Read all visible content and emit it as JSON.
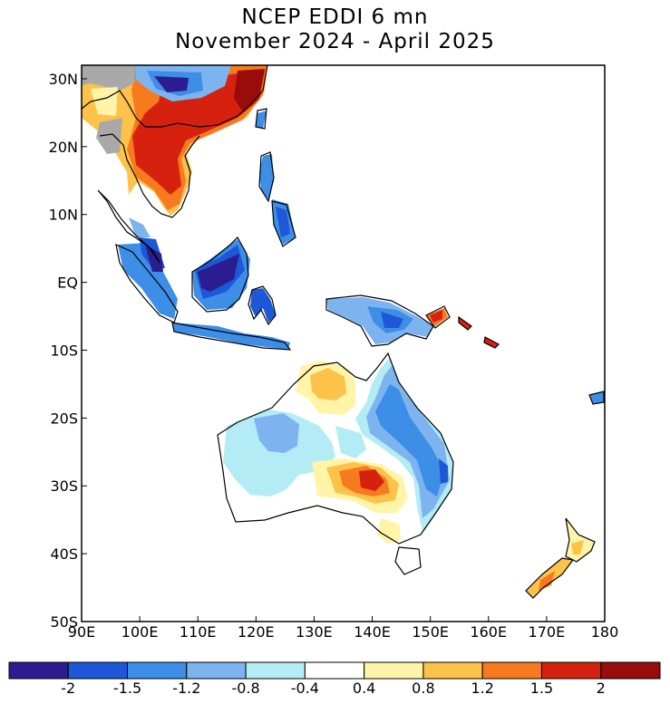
{
  "title": {
    "line1": "NCEP EDDI 6 mn",
    "line2": "November 2024 - April 2025"
  },
  "map": {
    "lon_ticks": [
      "90E",
      "100E",
      "110E",
      "120E",
      "130E",
      "140E",
      "150E",
      "160E",
      "170E",
      "180"
    ],
    "lat_ticks": [
      "30N",
      "20N",
      "10N",
      "EQ",
      "10S",
      "20S",
      "30S",
      "40S",
      "50S"
    ],
    "lon_range_deg": [
      90,
      180
    ],
    "lat_range_deg": [
      -50,
      32
    ]
  },
  "legend": {
    "labels": [
      "-2",
      "-1.5",
      "-1.2",
      "-0.8",
      "-0.4",
      "0.4",
      "0.8",
      "1.2",
      "1.5",
      "2"
    ],
    "colors": [
      "#2b1d8f",
      "#1c58d8",
      "#3d8ee6",
      "#7db4f0",
      "#b3ecf5",
      "#ffffff",
      "#fff4a8",
      "#fdc24a",
      "#f77a1e",
      "#d6210e",
      "#9a0b0b"
    ]
  },
  "colors": {
    "dry_extreme": "#9a0b0b",
    "dry_strong": "#d6210e",
    "dry_moderate": "#f77a1e",
    "dry_mild": "#fdc24a",
    "dry_slight": "#fff4a8",
    "neutral": "#ffffff",
    "wet_slight": "#b3ecf5",
    "wet_mild": "#7db4f0",
    "wet_moderate": "#3d8ee6",
    "wet_strong": "#1c58d8",
    "wet_extreme": "#2b1d8f",
    "missing": "#a9a9a9"
  }
}
